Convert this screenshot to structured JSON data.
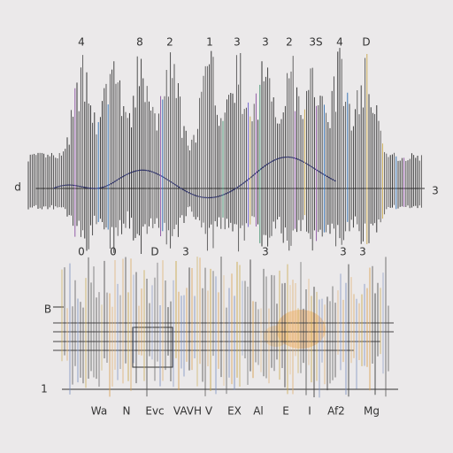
{
  "top_labels": [
    "4",
    "8",
    "2",
    "1",
    "3",
    "3",
    "2",
    "3S",
    "4",
    "D"
  ],
  "mid_labels": [
    "0",
    "0",
    "D",
    "3",
    "3",
    "3",
    "3"
  ],
  "left_labels": [
    "d",
    "B",
    "1"
  ],
  "right_labels": [
    "3"
  ],
  "bottom_labels": [
    "Wa",
    "N",
    "Evc",
    "VAVH V",
    "EX",
    "Al",
    "E",
    "I",
    "Af2",
    "Mg"
  ]
}
